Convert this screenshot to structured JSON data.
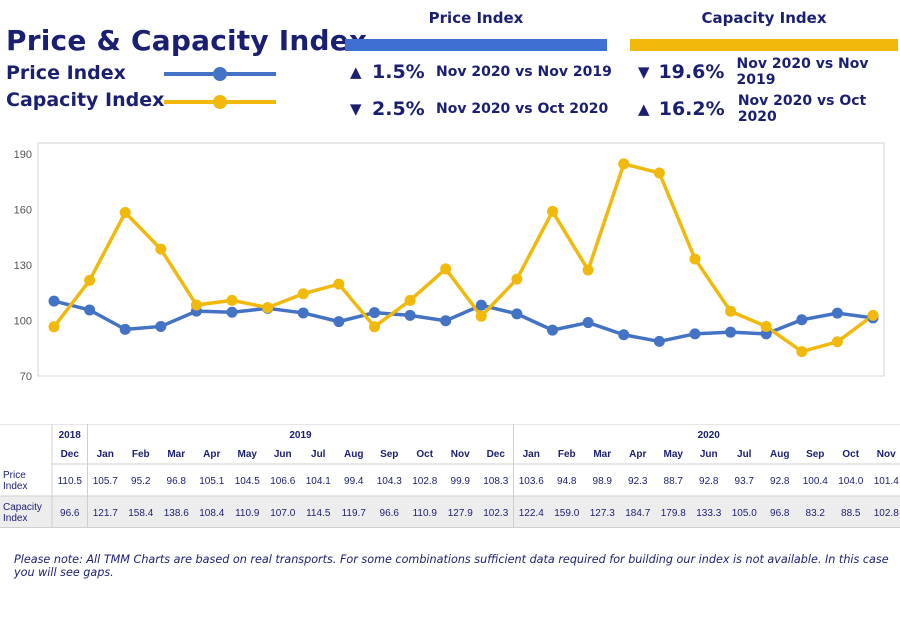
{
  "header": {
    "title": "Price & Capacity Index",
    "legend": [
      {
        "label": "Price Index",
        "color": "#4472c4"
      },
      {
        "label": "Capacity Index",
        "color": "#f0b90b"
      }
    ]
  },
  "price_panel": {
    "heading": "Price Index",
    "color": "#3f6fd1",
    "stats": [
      {
        "direction": "up",
        "arrow": "▲",
        "value": "1.5%",
        "comparison": "Nov 2020 vs Nov 2019"
      },
      {
        "direction": "down",
        "arrow": "▼",
        "value": "2.5%",
        "comparison": "Nov 2020 vs Oct 2020"
      }
    ]
  },
  "capacity_panel": {
    "heading": "Capacity Index",
    "color": "#f0b90b",
    "stats": [
      {
        "direction": "down",
        "arrow": "▼",
        "value": "19.6%",
        "comparison": "Nov 2020 vs Nov 2019"
      },
      {
        "direction": "up",
        "arrow": "▲",
        "value": "16.2%",
        "comparison": "Nov 2020 vs Oct 2020"
      }
    ]
  },
  "chart_data": {
    "type": "line",
    "title": "",
    "xlabel": "",
    "ylabel": "",
    "ylim": [
      70,
      196
    ],
    "y_ticks": [
      70,
      100,
      130,
      160,
      190
    ],
    "grid": false,
    "legend_position": "top-left",
    "x": [
      "Dec",
      "Jan",
      "Feb",
      "Mar",
      "Apr",
      "May",
      "Jun",
      "Jul",
      "Aug",
      "Sep",
      "Oct",
      "Nov",
      "Dec",
      "Jan",
      "Feb",
      "Mar",
      "Apr",
      "May",
      "Jun",
      "Jul",
      "Aug",
      "Sep",
      "Oct",
      "Nov"
    ],
    "series": [
      {
        "name": "Price Index",
        "color": "#4472c4",
        "values": [
          110.5,
          105.7,
          95.2,
          96.8,
          105.1,
          104.5,
          106.6,
          104.1,
          99.4,
          104.3,
          102.8,
          99.9,
          108.3,
          103.6,
          94.8,
          98.9,
          92.3,
          88.7,
          92.8,
          93.7,
          92.8,
          100.4,
          104.0,
          101.4
        ]
      },
      {
        "name": "Capacity Index",
        "color": "#f0b90b",
        "values": [
          96.6,
          121.7,
          158.4,
          138.6,
          108.4,
          110.9,
          107.0,
          114.5,
          119.7,
          96.6,
          110.9,
          127.9,
          102.3,
          122.4,
          159.0,
          127.3,
          184.7,
          179.8,
          133.3,
          105.0,
          96.8,
          83.2,
          88.5,
          102.8
        ]
      }
    ]
  },
  "table": {
    "year_groups": [
      {
        "year": "2018",
        "span": 1
      },
      {
        "year": "2019",
        "span": 12
      },
      {
        "year": "2020",
        "span": 11
      }
    ],
    "months": [
      "Dec",
      "Jan",
      "Feb",
      "Mar",
      "Apr",
      "May",
      "Jun",
      "Jul",
      "Aug",
      "Sep",
      "Oct",
      "Nov",
      "Dec",
      "Jan",
      "Feb",
      "Mar",
      "Apr",
      "May",
      "Jun",
      "Jul",
      "Aug",
      "Sep",
      "Oct",
      "Nov"
    ],
    "rows": [
      {
        "label_line1": "Price",
        "label_line2": "Index",
        "values": [
          "110.5",
          "105.7",
          "95.2",
          "96.8",
          "105.1",
          "104.5",
          "106.6",
          "104.1",
          "99.4",
          "104.3",
          "102.8",
          "99.9",
          "108.3",
          "103.6",
          "94.8",
          "98.9",
          "92.3",
          "88.7",
          "92.8",
          "93.7",
          "92.8",
          "100.4",
          "104.0",
          "101.4"
        ]
      },
      {
        "label_line1": "Capacity",
        "label_line2": "Index",
        "values": [
          "96.6",
          "121.7",
          "158.4",
          "138.6",
          "108.4",
          "110.9",
          "107.0",
          "114.5",
          "119.7",
          "96.6",
          "110.9",
          "127.9",
          "102.3",
          "122.4",
          "159.0",
          "127.3",
          "184.7",
          "179.8",
          "133.3",
          "105.0",
          "96.8",
          "83.2",
          "88.5",
          "102.8"
        ]
      }
    ]
  },
  "footnote": "Please note: All TMM Charts are based on real transports. For some combinations sufficient data required for building our index is not available. In this case you will see gaps."
}
